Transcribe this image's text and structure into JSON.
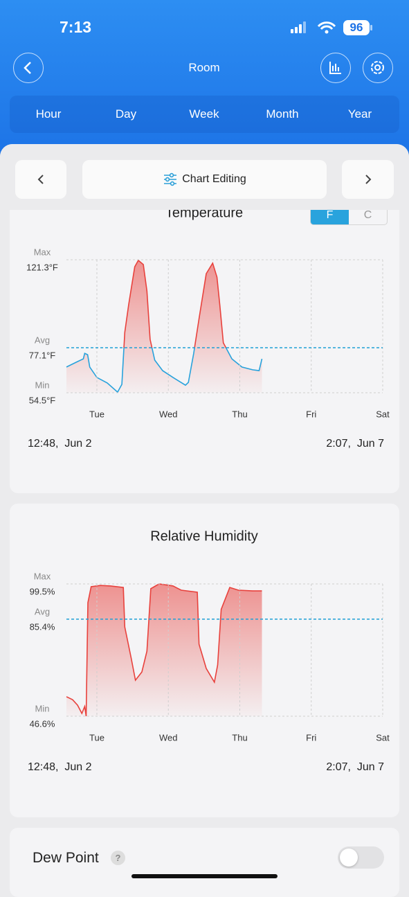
{
  "status_bar": {
    "time": "7:13",
    "battery": "96"
  },
  "header": {
    "title": "Room"
  },
  "tabs": [
    "Hour",
    "Day",
    "Week",
    "Month",
    "Year"
  ],
  "toolbar": {
    "label": "Chart Editing"
  },
  "unit_toggle": [
    "F",
    "C"
  ],
  "chart_data": [
    {
      "type": "line",
      "title": "Temperature",
      "color": "#e8413c",
      "below_avg_color": "#27a2dc",
      "x": [
        0.574,
        0.71,
        0.81,
        0.83,
        0.87,
        0.9,
        1.0,
        1.145,
        1.29,
        1.35,
        1.39,
        1.445,
        1.53,
        1.58,
        1.65,
        1.7,
        1.745,
        1.81,
        1.92,
        2.065,
        2.24,
        2.28,
        2.355,
        2.43,
        2.53,
        2.62,
        2.68,
        2.72,
        2.77,
        2.89,
        3.03,
        3.18,
        3.27,
        3.31
      ],
      "values": [
        67.4,
        69.8,
        71.5,
        74.3,
        73.6,
        67.4,
        62.2,
        59.4,
        54.8,
        58.7,
        84.8,
        98.7,
        117.8,
        121.0,
        118.9,
        105.6,
        81.3,
        70.9,
        65.6,
        62.2,
        58.3,
        59.7,
        74.3,
        91.7,
        114.3,
        119.6,
        112.6,
        98.7,
        79.6,
        71.5,
        67.4,
        66.0,
        65.6,
        71.5
      ],
      "xlim": [
        0.574,
        5
      ],
      "xticks": [
        {
          "value": 1,
          "label": "Tue"
        },
        {
          "value": 2,
          "label": "Wed"
        },
        {
          "value": 3,
          "label": "Thu"
        },
        {
          "value": 4,
          "label": "Fri"
        },
        {
          "value": 5,
          "label": "Sat"
        }
      ],
      "ylim": [
        54.5,
        121.3
      ],
      "yticks": [
        {
          "value": 54.5,
          "label": "54.5°F",
          "name": "Min"
        },
        {
          "value": 77.1,
          "label": "77.1°F",
          "name": "Avg",
          "line_color": "#1ea0d6",
          "dashed": true
        },
        {
          "value": 121.3,
          "label": "121.3°F",
          "name": "Max"
        }
      ],
      "grid": true,
      "grid_color": "#cfcfcf",
      "start_label": "12:48,  Jun 2",
      "end_label": "2:07,  Jun 7"
    },
    {
      "type": "line",
      "title": "Relative Humidity",
      "color": "#e8413c",
      "x": [
        0.574,
        0.66,
        0.73,
        0.79,
        0.83,
        0.85,
        0.855,
        0.874,
        0.92,
        1.05,
        1.19,
        1.37,
        1.39,
        1.48,
        1.54,
        1.63,
        1.7,
        1.755,
        1.87,
        2.065,
        2.18,
        2.405,
        2.43,
        2.53,
        2.645,
        2.69,
        2.74,
        2.86,
        2.98,
        3.18,
        3.31
      ],
      "values": [
        54.4,
        53.2,
        51.0,
        47.7,
        50.5,
        46.6,
        56.0,
        92.0,
        98.4,
        98.9,
        98.7,
        98.1,
        82.3,
        69.9,
        61.0,
        64.3,
        72.6,
        97.6,
        99.5,
        98.7,
        97.0,
        96.2,
        75.4,
        65.7,
        60.2,
        67.1,
        89.3,
        98.1,
        97.0,
        96.7,
        96.7
      ],
      "xlim": [
        0.574,
        5
      ],
      "xticks": [
        {
          "value": 1,
          "label": "Tue"
        },
        {
          "value": 2,
          "label": "Wed"
        },
        {
          "value": 3,
          "label": "Thu"
        },
        {
          "value": 4,
          "label": "Fri"
        },
        {
          "value": 5,
          "label": "Sat"
        }
      ],
      "ylim": [
        46.6,
        99.5
      ],
      "yticks": [
        {
          "value": 46.6,
          "label": "46.6%",
          "name": "Min"
        },
        {
          "value": 85.4,
          "label": "85.4%",
          "name": "Avg",
          "line_color": "#1ea0d6",
          "dashed": true
        },
        {
          "value": 99.5,
          "label": "99.5%",
          "name": "Max"
        }
      ],
      "grid": true,
      "grid_color": "#cfcfcf",
      "start_label": "12:48,  Jun 2",
      "end_label": "2:07,  Jun 7"
    }
  ],
  "dew_point": {
    "label": "Dew Point",
    "help": "?"
  }
}
